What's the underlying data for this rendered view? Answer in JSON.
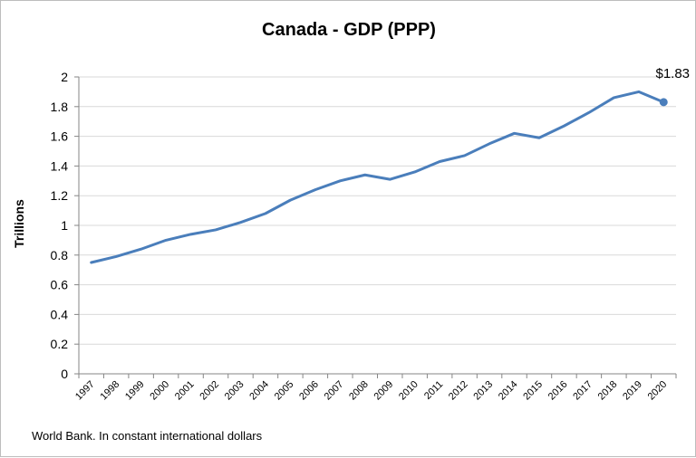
{
  "chart_data": {
    "type": "line",
    "title": "Canada - GDP (PPP)",
    "xlabel": "",
    "ylabel": "Trillions",
    "ylim": [
      0,
      2
    ],
    "y_ticks": [
      "0",
      "0.2",
      "0.4",
      "0.6",
      "0.8",
      "1",
      "1.2",
      "1.4",
      "1.6",
      "1.8",
      "2"
    ],
    "grid": true,
    "x": [
      "1997",
      "1998",
      "1999",
      "2000",
      "2001",
      "2002",
      "2003",
      "2004",
      "2005",
      "2006",
      "2007",
      "2008",
      "2009",
      "2010",
      "2011",
      "2012",
      "2013",
      "2014",
      "2015",
      "2016",
      "2017",
      "2018",
      "2019",
      "2020"
    ],
    "series": [
      {
        "values": [
          0.75,
          0.79,
          0.84,
          0.9,
          0.94,
          0.97,
          1.02,
          1.08,
          1.17,
          1.24,
          1.3,
          1.34,
          1.31,
          1.36,
          1.43,
          1.47,
          1.55,
          1.62,
          1.59,
          1.67,
          1.76,
          1.86,
          1.9,
          1.83
        ],
        "color": "#4a7ebb"
      }
    ],
    "annotation": {
      "text": "$1.83"
    },
    "source_note": "World Bank.  In constant international dollars"
  }
}
